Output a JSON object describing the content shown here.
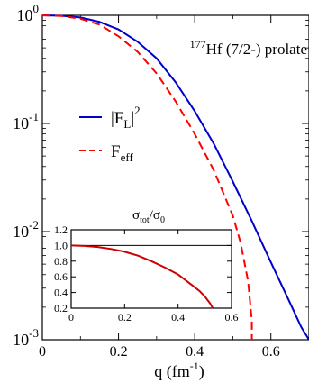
{
  "chart_data": {
    "type": "line",
    "main": {
      "annotation": {
        "prefix": "177",
        "text": "Hf (7/2-) prolate"
      },
      "xlabel": {
        "base": "q (fm",
        "sup": "-1",
        "close": ")"
      },
      "xlim": [
        0,
        0.7
      ],
      "ylim": [
        0.001,
        1
      ],
      "yscale": "log",
      "x_ticks": [
        {
          "value": 0,
          "label": "0"
        },
        {
          "value": 0.2,
          "label": "0.2"
        },
        {
          "value": 0.4,
          "label": "0.4"
        },
        {
          "value": 0.6,
          "label": "0.6"
        }
      ],
      "y_ticks": [
        {
          "value": 1,
          "base": "10",
          "exp": "0"
        },
        {
          "value": 0.1,
          "base": "10",
          "exp": "-1"
        },
        {
          "value": 0.01,
          "base": "10",
          "exp": "-2"
        },
        {
          "value": 0.001,
          "base": "10",
          "exp": "-3"
        }
      ],
      "series": [
        {
          "name": {
            "open": "|F",
            "sub": "L",
            "close": "|",
            "sup": "2"
          },
          "color": "#0000cc",
          "style": "solid",
          "x": [
            0,
            0.05,
            0.1,
            0.15,
            0.2,
            0.25,
            0.3,
            0.35,
            0.4,
            0.45,
            0.5,
            0.55,
            0.6,
            0.65,
            0.68,
            0.7
          ],
          "y": [
            1,
            0.99,
            0.955,
            0.87,
            0.74,
            0.57,
            0.4,
            0.24,
            0.13,
            0.065,
            0.029,
            0.0125,
            0.0052,
            0.0022,
            0.0013,
            0.001
          ]
        },
        {
          "name": {
            "open": "F",
            "sub": "eff",
            "close": "",
            "sup": ""
          },
          "color": "#ff0000",
          "style": "dashed",
          "x": [
            0,
            0.05,
            0.1,
            0.15,
            0.2,
            0.25,
            0.3,
            0.35,
            0.4,
            0.45,
            0.5,
            0.52,
            0.54,
            0.545,
            0.55,
            0.55
          ],
          "y": [
            1,
            0.985,
            0.93,
            0.82,
            0.64,
            0.46,
            0.29,
            0.16,
            0.08,
            0.037,
            0.014,
            0.008,
            0.0035,
            0.0023,
            0.0015,
            0.001
          ]
        }
      ]
    },
    "inset": {
      "title": {
        "base": "σ",
        "sub": "tot",
        "over": "/σ",
        "sub2": "0"
      },
      "xlim": [
        0,
        0.6
      ],
      "ylim": [
        0.2,
        1.2
      ],
      "x_ticks": [
        {
          "value": 0,
          "label": "0"
        },
        {
          "value": 0.2,
          "label": "0.2"
        },
        {
          "value": 0.4,
          "label": "0.4"
        },
        {
          "value": 0.6,
          "label": "0.6"
        }
      ],
      "y_ticks": [
        {
          "value": 0.2,
          "label": "0.2"
        },
        {
          "value": 0.4,
          "label": "0.4"
        },
        {
          "value": 0.6,
          "label": "0.6"
        },
        {
          "value": 0.8,
          "label": "0.8"
        },
        {
          "value": 1.0,
          "label": "1.0"
        },
        {
          "value": 1.2,
          "label": "1.2"
        }
      ],
      "reference_line": {
        "y": 1.0,
        "color": "#000000"
      },
      "series": [
        {
          "color": "#cc0000",
          "x": [
            0,
            0.05,
            0.1,
            0.15,
            0.2,
            0.25,
            0.3,
            0.35,
            0.4,
            0.45,
            0.48,
            0.5,
            0.52,
            0.53
          ],
          "y": [
            1.0,
            0.995,
            0.98,
            0.955,
            0.92,
            0.87,
            0.8,
            0.72,
            0.63,
            0.5,
            0.42,
            0.35,
            0.26,
            0.2
          ]
        }
      ]
    }
  }
}
